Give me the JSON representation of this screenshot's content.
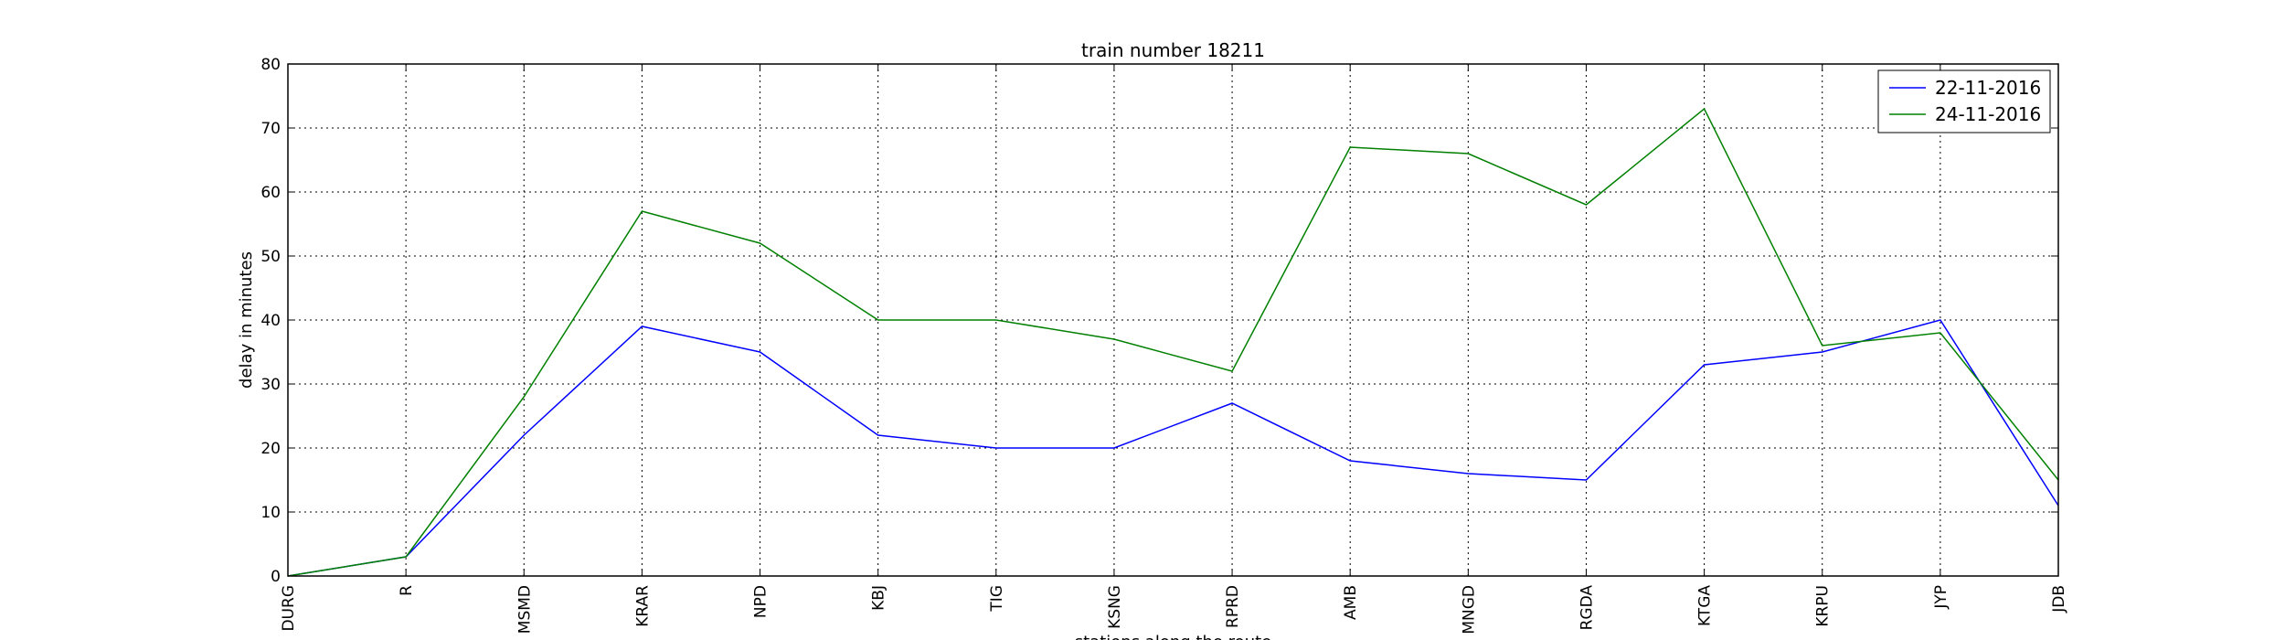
{
  "chart_data": {
    "type": "line",
    "title": "train number 18211",
    "xlabel": "stations along the route",
    "ylabel": "delay in minutes",
    "categories": [
      "DURG",
      "R",
      "MSMD",
      "KRAR",
      "NPD",
      "KBJ",
      "TIG",
      "KSNG",
      "RPRD",
      "AMB",
      "MNGD",
      "RGDA",
      "KTGA",
      "KRPU",
      "JYP",
      "JDB"
    ],
    "ylim": [
      0,
      80
    ],
    "yticks": [
      0,
      10,
      20,
      30,
      40,
      50,
      60,
      70,
      80
    ],
    "grid": true,
    "legend_position": "top-right",
    "series": [
      {
        "name": "22-11-2016",
        "color": "#0000ff",
        "values": [
          0,
          3,
          22,
          39,
          35,
          22,
          20,
          20,
          27,
          18,
          16,
          15,
          33,
          35,
          40,
          11
        ]
      },
      {
        "name": "24-11-2016",
        "color": "#008000",
        "values": [
          0,
          3,
          28,
          57,
          52,
          40,
          40,
          37,
          32,
          67,
          66,
          58,
          73,
          36,
          38,
          15
        ]
      }
    ]
  }
}
